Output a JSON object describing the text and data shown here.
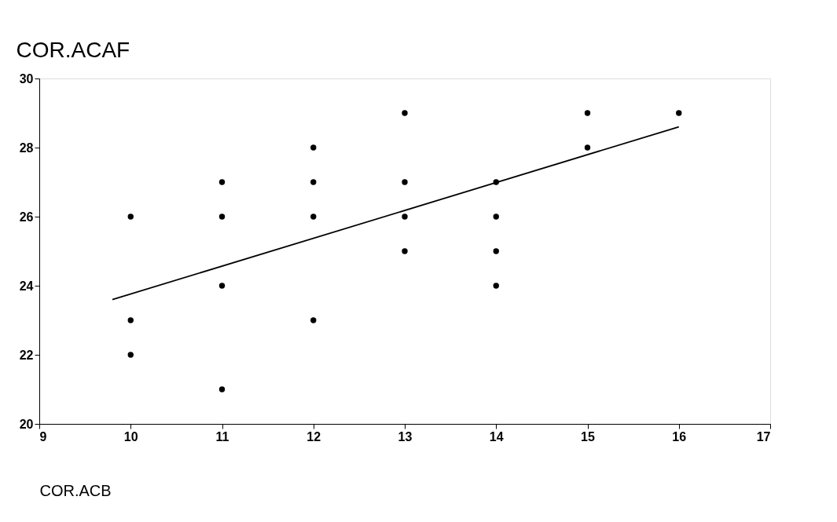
{
  "chart_data": {
    "type": "scatter",
    "xlabel": "COR.ACB",
    "ylabel": "COR.ACAF",
    "xlim": [
      9,
      17
    ],
    "ylim": [
      20,
      30
    ],
    "xticks": [
      9,
      10,
      11,
      12,
      13,
      14,
      15,
      16,
      17
    ],
    "yticks": [
      20,
      22,
      24,
      26,
      28,
      30
    ],
    "grid": false,
    "marker": "circle",
    "series": [
      {
        "type": "scatter",
        "color": "#000000",
        "x": [
          10,
          10,
          10,
          11,
          11,
          11,
          11,
          12,
          12,
          12,
          12,
          13,
          13,
          13,
          13,
          14,
          14,
          14,
          14,
          15,
          15,
          16
        ],
        "values": [
          26,
          23,
          22,
          27,
          26,
          24,
          21,
          28,
          27,
          26,
          23,
          29,
          27,
          26,
          25,
          27,
          26,
          25,
          24,
          29,
          28,
          29
        ]
      },
      {
        "type": "line",
        "marker": "none",
        "color": "#000000",
        "x": [
          9.8,
          16
        ],
        "values": [
          23.6,
          28.6
        ]
      }
    ]
  }
}
